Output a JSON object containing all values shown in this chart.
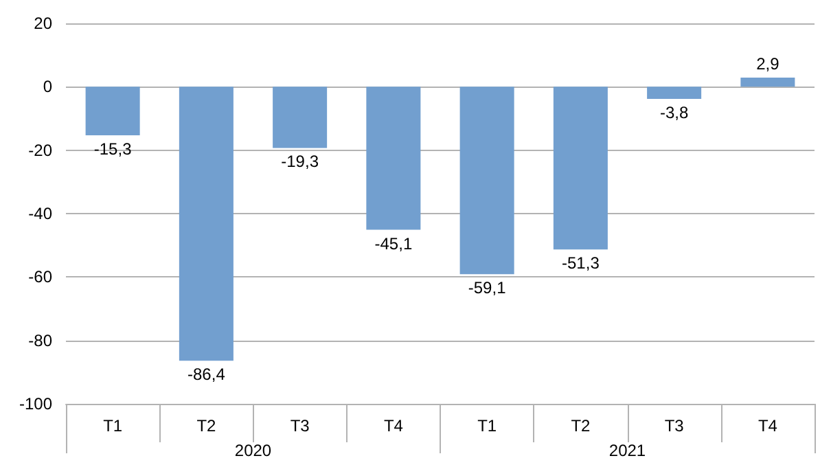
{
  "chart_data": {
    "type": "bar",
    "categories": [
      "T1",
      "T2",
      "T3",
      "T4",
      "T1",
      "T2",
      "T3",
      "T4"
    ],
    "values": [
      -15.3,
      -86.4,
      -19.3,
      -45.1,
      -59.1,
      -51.3,
      -3.8,
      2.9
    ],
    "value_labels": [
      "-15,3",
      "-86,4",
      "-19,3",
      "-45,1",
      "-59,1",
      "-51,3",
      "-3,8",
      "2,9"
    ],
    "color": "#729fcf",
    "ylim": [
      -100,
      20
    ],
    "yticks": [
      -100,
      -80,
      -60,
      -40,
      -20,
      0,
      20
    ],
    "grid": "y",
    "annotations": [
      "2020",
      "2021"
    ]
  }
}
